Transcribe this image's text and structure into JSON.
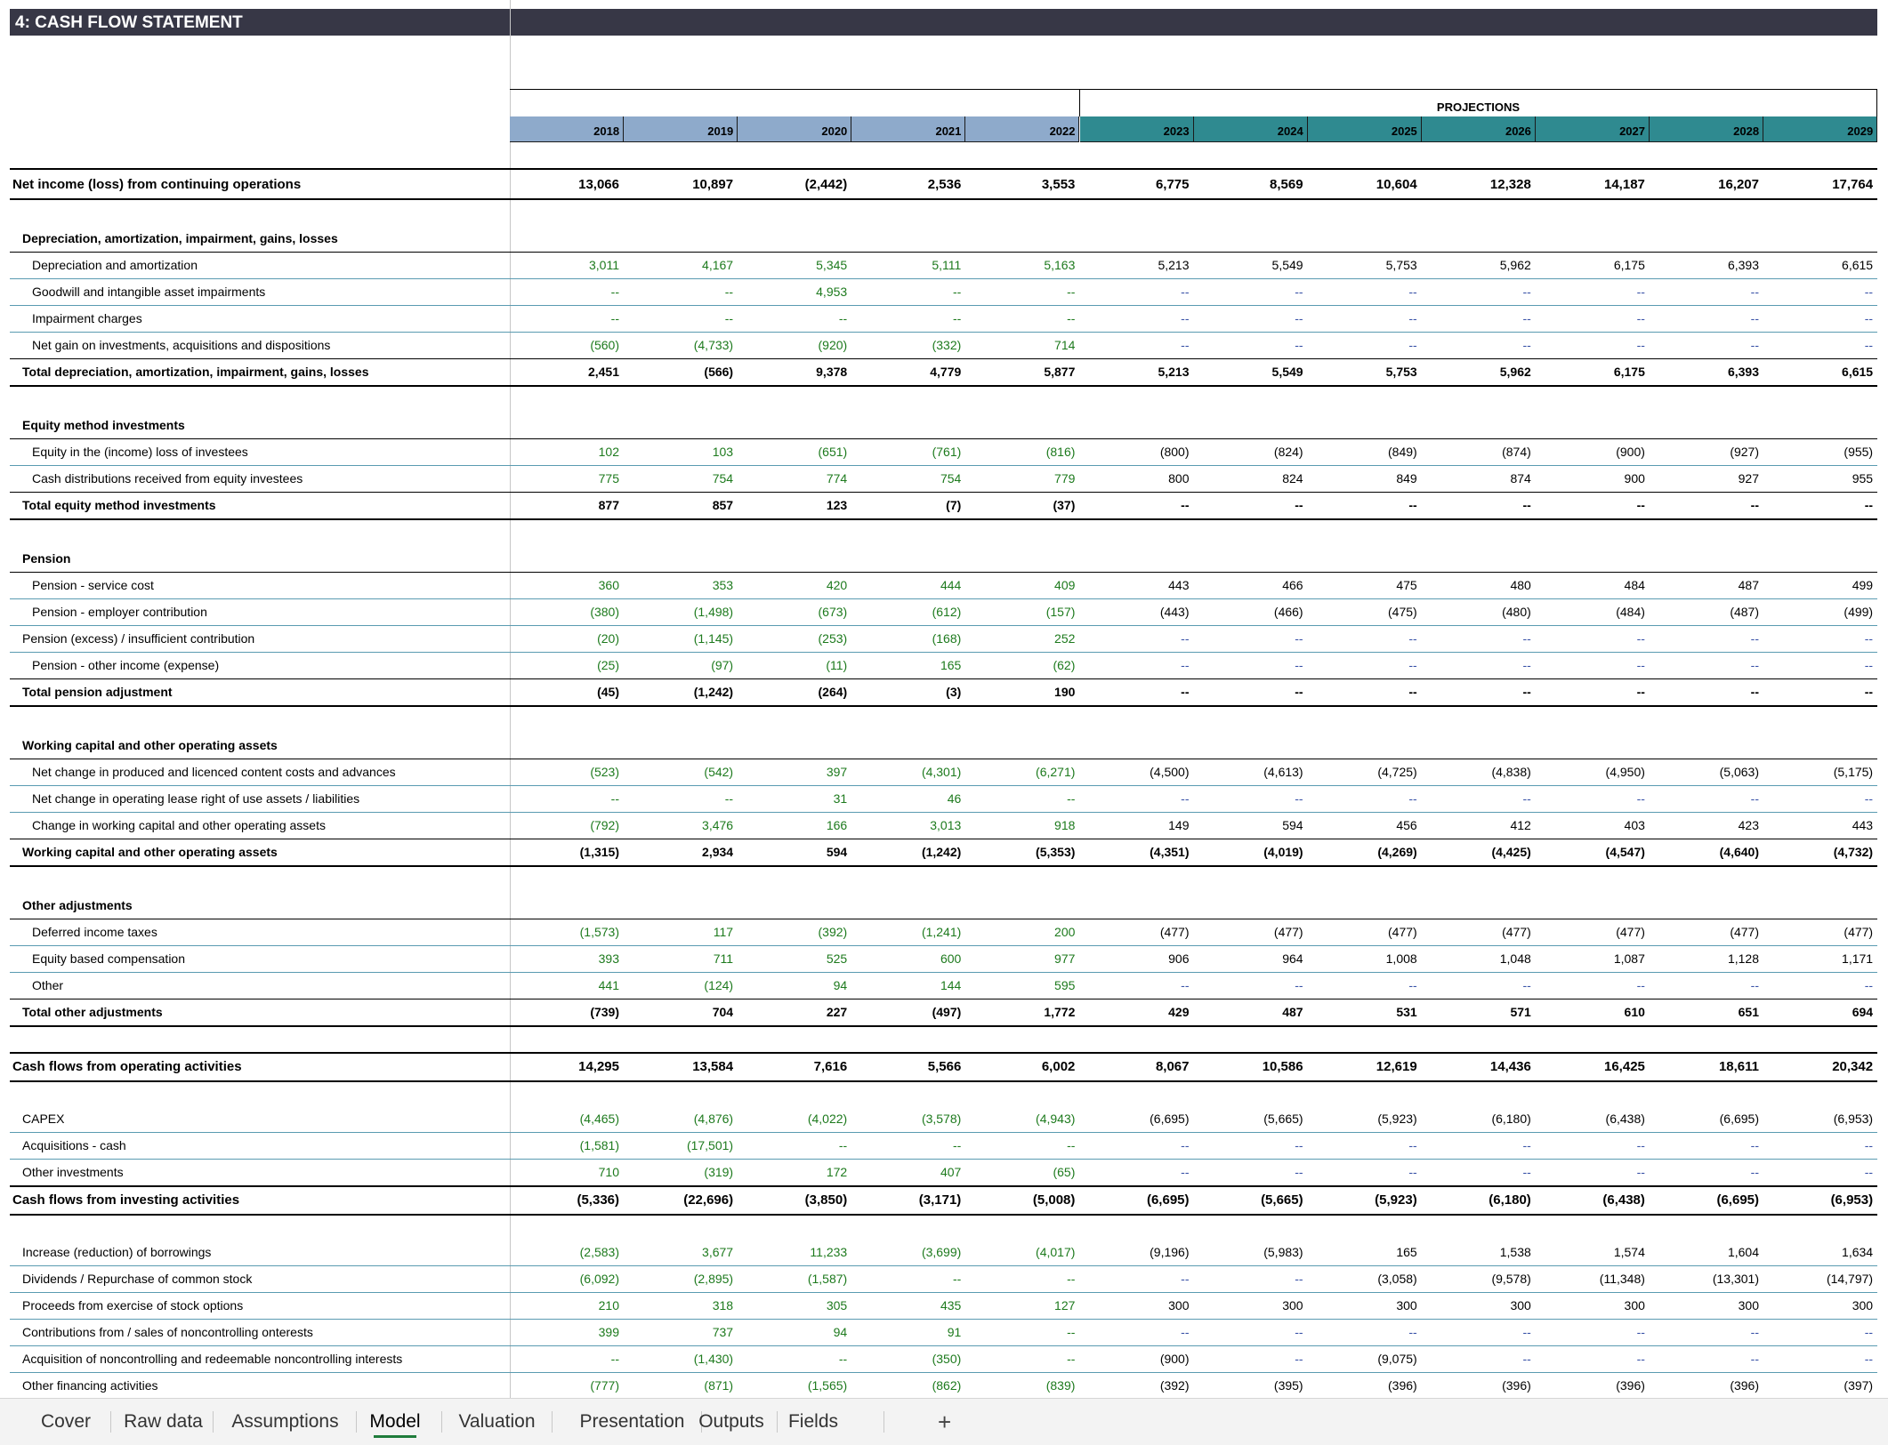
{
  "sheet_title": "4: CASH FLOW STATEMENT",
  "projections_label": "PROJECTIONS",
  "years": [
    "2018",
    "2019",
    "2020",
    "2021",
    "2022",
    "2023",
    "2024",
    "2025",
    "2026",
    "2027",
    "2028",
    "2029"
  ],
  "rows": [
    {
      "kind": "major",
      "label": "Net income (loss) from continuing operations",
      "values": [
        "13,066",
        "10,897",
        "(2,442)",
        "2,536",
        "3,553",
        "6,775",
        "8,569",
        "10,604",
        "12,328",
        "14,187",
        "16,207",
        "17,764"
      ]
    },
    {
      "kind": "section",
      "label": "Depreciation, amortization, impairment, gains, losses"
    },
    {
      "kind": "item",
      "indent": 2,
      "label": "Depreciation and amortization",
      "values": [
        "3,011",
        "4,167",
        "5,345",
        "5,111",
        "5,163",
        "5,213",
        "5,549",
        "5,753",
        "5,962",
        "6,175",
        "6,393",
        "6,615"
      ]
    },
    {
      "kind": "item",
      "indent": 2,
      "label": "Goodwill and intangible asset impairments",
      "values": [
        "--",
        "--",
        "4,953",
        "--",
        "--",
        "--",
        "--",
        "--",
        "--",
        "--",
        "--",
        "--"
      ]
    },
    {
      "kind": "item",
      "indent": 2,
      "label": "Impairment charges",
      "values": [
        "--",
        "--",
        "--",
        "--",
        "--",
        "--",
        "--",
        "--",
        "--",
        "--",
        "--",
        "--"
      ]
    },
    {
      "kind": "item",
      "indent": 2,
      "label": "Net gain on investments, acquisitions and dispositions",
      "values": [
        "(560)",
        "(4,733)",
        "(920)",
        "(332)",
        "714",
        "--",
        "--",
        "--",
        "--",
        "--",
        "--",
        "--"
      ]
    },
    {
      "kind": "total",
      "label": "Total depreciation, amortization, impairment, gains, losses",
      "values": [
        "2,451",
        "(566)",
        "9,378",
        "4,779",
        "5,877",
        "5,213",
        "5,549",
        "5,753",
        "5,962",
        "6,175",
        "6,393",
        "6,615"
      ]
    },
    {
      "kind": "section",
      "label": "Equity method investments"
    },
    {
      "kind": "item",
      "indent": 2,
      "label": "Equity in the (income) loss of investees",
      "values": [
        "102",
        "103",
        "(651)",
        "(761)",
        "(816)",
        "(800)",
        "(824)",
        "(849)",
        "(874)",
        "(900)",
        "(927)",
        "(955)"
      ]
    },
    {
      "kind": "item",
      "indent": 2,
      "label": "Cash distributions received from equity investees",
      "values": [
        "775",
        "754",
        "774",
        "754",
        "779",
        "800",
        "824",
        "849",
        "874",
        "900",
        "927",
        "955"
      ]
    },
    {
      "kind": "total",
      "label": "Total equity method investments",
      "values": [
        "877",
        "857",
        "123",
        "(7)",
        "(37)",
        "--",
        "--",
        "--",
        "--",
        "--",
        "--",
        "--"
      ]
    },
    {
      "kind": "section",
      "label": "Pension"
    },
    {
      "kind": "item",
      "indent": 2,
      "label": "Pension - service cost",
      "values": [
        "360",
        "353",
        "420",
        "444",
        "409",
        "443",
        "466",
        "475",
        "480",
        "484",
        "487",
        "499"
      ]
    },
    {
      "kind": "item",
      "indent": 2,
      "label": "Pension - employer contribution",
      "values": [
        "(380)",
        "(1,498)",
        "(673)",
        "(612)",
        "(157)",
        "(443)",
        "(466)",
        "(475)",
        "(480)",
        "(484)",
        "(487)",
        "(499)"
      ]
    },
    {
      "kind": "item",
      "indent": 1,
      "label": "Pension (excess) / insufficient contribution",
      "values": [
        "(20)",
        "(1,145)",
        "(253)",
        "(168)",
        "252",
        "--",
        "--",
        "--",
        "--",
        "--",
        "--",
        "--"
      ]
    },
    {
      "kind": "item",
      "indent": 2,
      "label": "Pension - other income (expense)",
      "values": [
        "(25)",
        "(97)",
        "(11)",
        "165",
        "(62)",
        "--",
        "--",
        "--",
        "--",
        "--",
        "--",
        "--"
      ]
    },
    {
      "kind": "total",
      "label": "Total pension adjustment",
      "values": [
        "(45)",
        "(1,242)",
        "(264)",
        "(3)",
        "190",
        "--",
        "--",
        "--",
        "--",
        "--",
        "--",
        "--"
      ]
    },
    {
      "kind": "section",
      "label": "Working capital and other operating assets"
    },
    {
      "kind": "item",
      "indent": 2,
      "label": "Net change in produced and licenced content costs and advances",
      "values": [
        "(523)",
        "(542)",
        "397",
        "(4,301)",
        "(6,271)",
        "(4,500)",
        "(4,613)",
        "(4,725)",
        "(4,838)",
        "(4,950)",
        "(5,063)",
        "(5,175)"
      ]
    },
    {
      "kind": "item",
      "indent": 2,
      "label": "Net change in operating lease right of use assets / liabilities",
      "values": [
        "--",
        "--",
        "31",
        "46",
        "--",
        "--",
        "--",
        "--",
        "--",
        "--",
        "--",
        "--"
      ]
    },
    {
      "kind": "item",
      "indent": 2,
      "label": "Change in working capital and other operating assets",
      "values": [
        "(792)",
        "3,476",
        "166",
        "3,013",
        "918",
        "149",
        "594",
        "456",
        "412",
        "403",
        "423",
        "443"
      ]
    },
    {
      "kind": "total",
      "label": "Working capital and other operating assets",
      "values": [
        "(1,315)",
        "2,934",
        "594",
        "(1,242)",
        "(5,353)",
        "(4,351)",
        "(4,019)",
        "(4,269)",
        "(4,425)",
        "(4,547)",
        "(4,640)",
        "(4,732)"
      ]
    },
    {
      "kind": "section",
      "label": "Other adjustments"
    },
    {
      "kind": "item",
      "indent": 2,
      "label": "Deferred income taxes",
      "values": [
        "(1,573)",
        "117",
        "(392)",
        "(1,241)",
        "200",
        "(477)",
        "(477)",
        "(477)",
        "(477)",
        "(477)",
        "(477)",
        "(477)"
      ]
    },
    {
      "kind": "item",
      "indent": 2,
      "label": "Equity based compensation",
      "values": [
        "393",
        "711",
        "525",
        "600",
        "977",
        "906",
        "964",
        "1,008",
        "1,048",
        "1,087",
        "1,128",
        "1,171"
      ]
    },
    {
      "kind": "item",
      "indent": 2,
      "label": "Other",
      "values": [
        "441",
        "(124)",
        "94",
        "144",
        "595",
        "--",
        "--",
        "--",
        "--",
        "--",
        "--",
        "--"
      ]
    },
    {
      "kind": "total",
      "label": "Total other adjustments",
      "values": [
        "(739)",
        "704",
        "227",
        "(497)",
        "1,772",
        "429",
        "487",
        "531",
        "571",
        "610",
        "651",
        "694"
      ]
    },
    {
      "kind": "major",
      "label": "Cash flows from operating activities",
      "values": [
        "14,295",
        "13,584",
        "7,616",
        "5,566",
        "6,002",
        "8,067",
        "10,586",
        "12,619",
        "14,436",
        "16,425",
        "18,611",
        "20,342"
      ]
    },
    {
      "kind": "item",
      "indent": 1,
      "label": "CAPEX",
      "values": [
        "(4,465)",
        "(4,876)",
        "(4,022)",
        "(3,578)",
        "(4,943)",
        "(6,695)",
        "(5,665)",
        "(5,923)",
        "(6,180)",
        "(6,438)",
        "(6,695)",
        "(6,953)"
      ]
    },
    {
      "kind": "item",
      "indent": 1,
      "label": "Acquisitions - cash",
      "values": [
        "(1,581)",
        "(17,501)",
        "--",
        "--",
        "--",
        "--",
        "--",
        "--",
        "--",
        "--",
        "--",
        "--"
      ]
    },
    {
      "kind": "item",
      "indent": 1,
      "label": "Other investments",
      "values": [
        "710",
        "(319)",
        "172",
        "407",
        "(65)",
        "--",
        "--",
        "--",
        "--",
        "--",
        "--",
        "--"
      ]
    },
    {
      "kind": "major",
      "label": "Cash flows from investing activities",
      "values": [
        "(5,336)",
        "(22,696)",
        "(3,850)",
        "(3,171)",
        "(5,008)",
        "(6,695)",
        "(5,665)",
        "(5,923)",
        "(6,180)",
        "(6,438)",
        "(6,695)",
        "(6,953)"
      ]
    },
    {
      "kind": "item",
      "indent": 1,
      "label": "Increase (reduction) of borrowings",
      "values": [
        "(2,583)",
        "3,677",
        "11,233",
        "(3,699)",
        "(4,017)",
        "(9,196)",
        "(5,983)",
        "165",
        "1,538",
        "1,574",
        "1,604",
        "1,634"
      ]
    },
    {
      "kind": "item",
      "indent": 1,
      "label": "Dividends / Repurchase of common stock",
      "values": [
        "(6,092)",
        "(2,895)",
        "(1,587)",
        "--",
        "--",
        "--",
        "--",
        "(3,058)",
        "(9,578)",
        "(11,348)",
        "(13,301)",
        "(14,797)"
      ]
    },
    {
      "kind": "item",
      "indent": 1,
      "label": "Proceeds from exercise of stock options",
      "values": [
        "210",
        "318",
        "305",
        "435",
        "127",
        "300",
        "300",
        "300",
        "300",
        "300",
        "300",
        "300"
      ]
    },
    {
      "kind": "item",
      "indent": 1,
      "label": "Contributions from / sales of noncontrolling onterests",
      "values": [
        "399",
        "737",
        "94",
        "91",
        "--",
        "--",
        "--",
        "--",
        "--",
        "--",
        "--",
        "--"
      ]
    },
    {
      "kind": "item",
      "indent": 1,
      "label": "Acquisition of noncontrolling and redeemable noncontrolling interests",
      "values": [
        "--",
        "(1,430)",
        "--",
        "(350)",
        "--",
        "(900)",
        "--",
        "(9,075)",
        "--",
        "--",
        "--",
        "--"
      ]
    },
    {
      "kind": "item",
      "indent": 1,
      "label": "Other financing activities",
      "values": [
        "(777)",
        "(871)",
        "(1,565)",
        "(862)",
        "(839)",
        "(392)",
        "(395)",
        "(396)",
        "(396)",
        "(396)",
        "(396)",
        "(397)"
      ]
    }
  ],
  "tabs": [
    {
      "label": "Cover",
      "active": false
    },
    {
      "label": "Raw data",
      "active": false
    },
    {
      "label": "Assumptions",
      "active": false
    },
    {
      "label": "Model",
      "active": true
    },
    {
      "label": "Valuation",
      "active": false
    },
    {
      "label": "Presentation",
      "active": false
    },
    {
      "label": "Outputs",
      "active": false
    },
    {
      "label": "Fields",
      "active": false
    }
  ],
  "add_sheet_icon": "plus-icon",
  "colors": {
    "title_bar": "#373746",
    "historical_header": "#8eaacb",
    "projection_header": "#2f8a90",
    "historical_input": "#1d7a1d",
    "active_tab_underline": "#1f7c3b"
  }
}
